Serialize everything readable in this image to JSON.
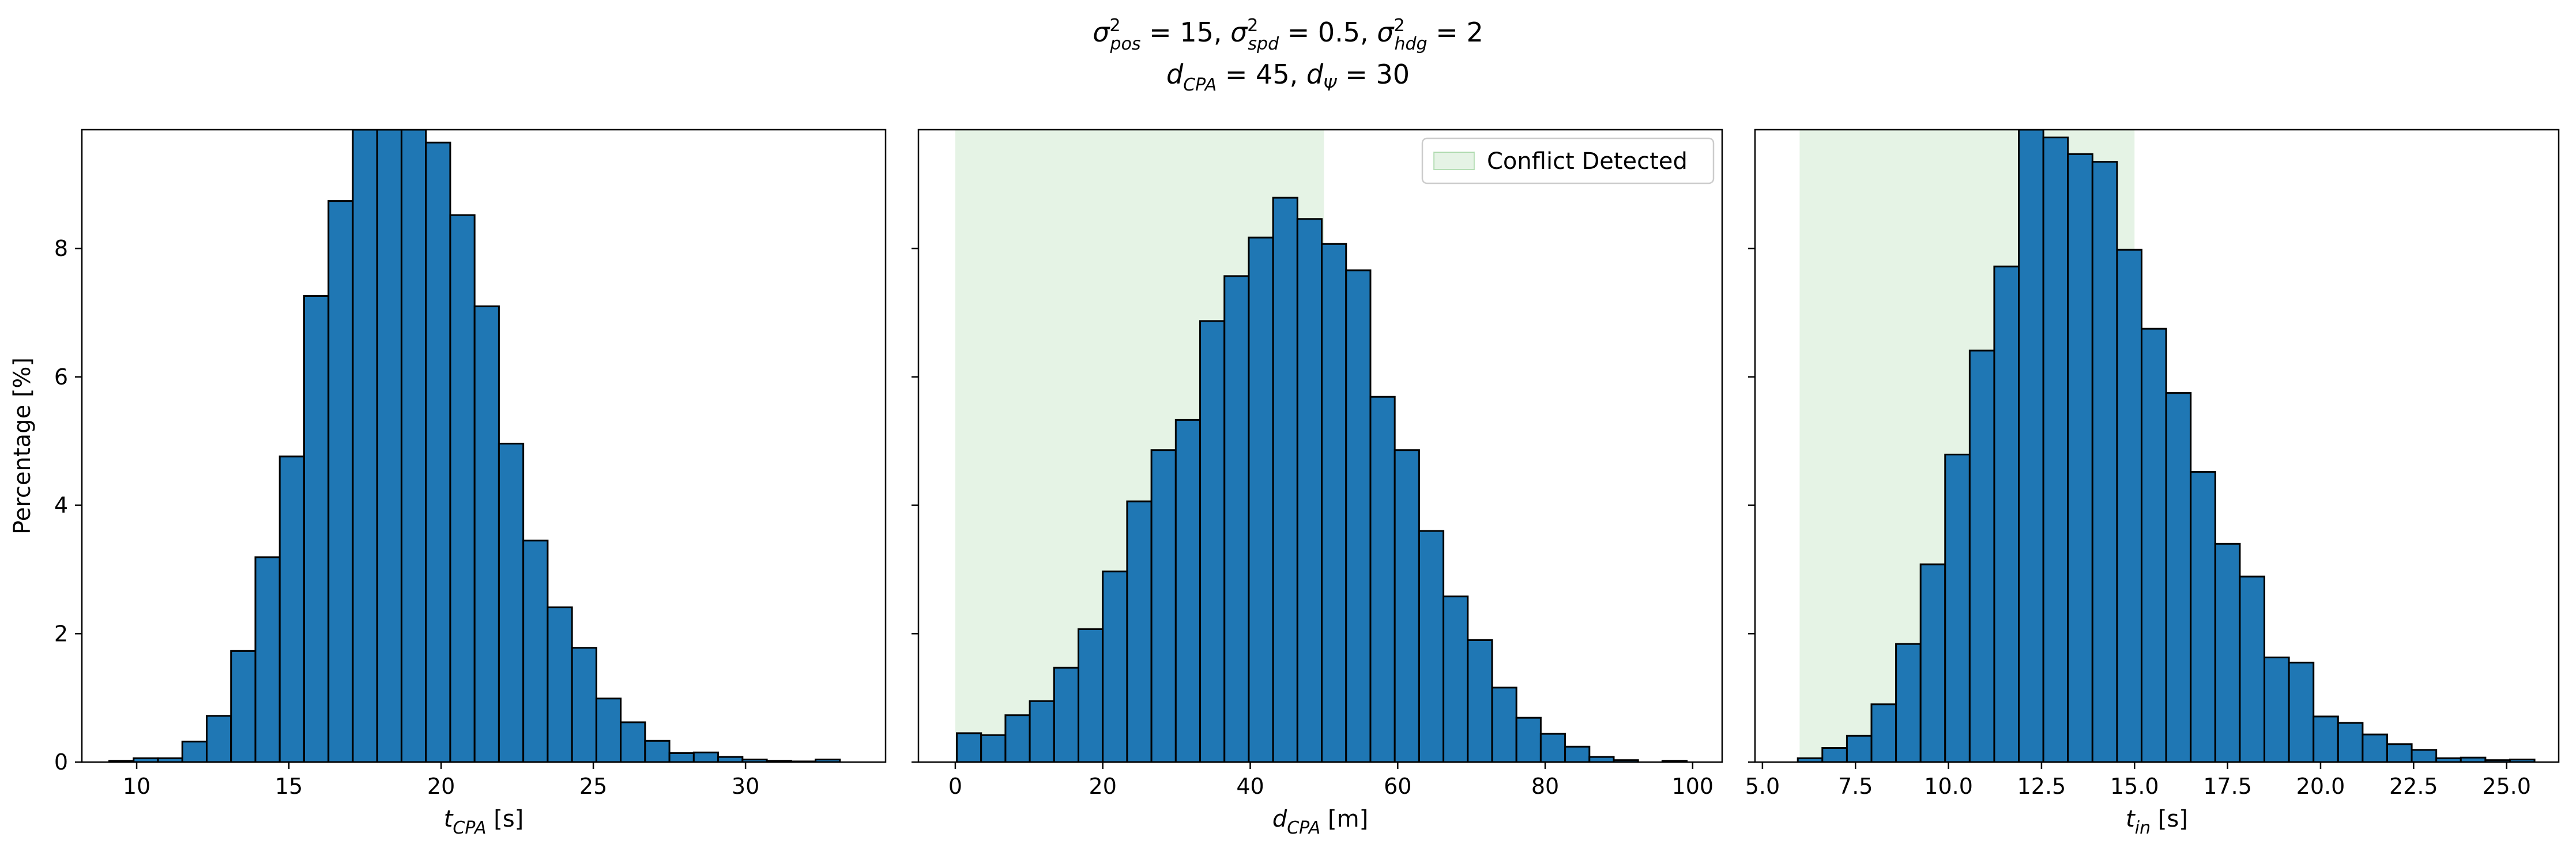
{
  "suptitle": {
    "line1": [
      {
        "sym": "σ",
        "sup": "2",
        "sub": "pos",
        "rest": " = 15, "
      },
      {
        "sym": "σ",
        "sup": "2",
        "sub": "spd",
        "rest": " = 0.5, "
      },
      {
        "sym": "σ",
        "sup": "2",
        "sub": "hdg",
        "rest": " = 2"
      }
    ],
    "line2": [
      {
        "sym": "d",
        "sub": "CPA",
        "rest": " = 45, "
      },
      {
        "sym": "d",
        "sub": "Ψ",
        "rest": " = 30"
      }
    ]
  },
  "style": {
    "bar_fill": "#1f77b4",
    "bar_edge": "#000000",
    "region_fill": "#2ca02c",
    "region_opacity": 0.12
  },
  "chart_data": [
    {
      "type": "bar",
      "name": "t_cpa_histogram",
      "xlabel": {
        "sym": "t",
        "sub": "CPA",
        "rest": " [s]"
      },
      "ylabel": "Percentage [%]",
      "xlim": [
        8.2,
        34.6
      ],
      "ylim": [
        0,
        9.85
      ],
      "xticks": [
        10,
        15,
        20,
        25,
        30
      ],
      "yticks": [
        0,
        2,
        4,
        6,
        8
      ],
      "show_ytick_labels": true,
      "bin_start": 9.1,
      "bin_width": 0.8,
      "values": [
        0.02,
        0.06,
        0.06,
        0.32,
        0.72,
        1.73,
        3.19,
        4.76,
        7.26,
        8.74,
        9.85,
        9.85,
        9.85,
        9.65,
        8.52,
        7.1,
        4.96,
        3.45,
        2.41,
        1.78,
        0.99,
        0.62,
        0.33,
        0.14,
        0.15,
        0.08,
        0.04,
        0.02,
        0.01,
        0.04
      ],
      "shaded": null,
      "legend": null
    },
    {
      "type": "bar",
      "name": "d_cpa_histogram",
      "xlabel": {
        "sym": "d",
        "sub": "CPA",
        "rest": " [m]"
      },
      "ylabel": "",
      "xlim": [
        -5,
        104
      ],
      "ylim": [
        0,
        9.85
      ],
      "xticks": [
        0,
        20,
        40,
        60,
        80,
        100
      ],
      "yticks": [
        0,
        2,
        4,
        6,
        8
      ],
      "show_ytick_labels": false,
      "bin_start": 0.2,
      "bin_width": 3.3,
      "values": [
        0.45,
        0.42,
        0.73,
        0.95,
        1.47,
        2.07,
        2.97,
        4.06,
        4.86,
        5.33,
        6.87,
        7.57,
        8.17,
        8.79,
        8.46,
        8.07,
        7.66,
        5.69,
        4.86,
        3.6,
        2.58,
        1.9,
        1.16,
        0.69,
        0.44,
        0.24,
        0.08,
        0.03,
        0.0,
        0.02
      ],
      "shaded": [
        0,
        50
      ],
      "legend": {
        "label": "Conflict Detected",
        "position": "upper right"
      }
    },
    {
      "type": "bar",
      "name": "t_in_histogram",
      "xlabel": {
        "sym": "t",
        "sub": "in",
        "rest": " [s]"
      },
      "ylabel": "",
      "xlim": [
        4.8,
        26.4
      ],
      "ylim": [
        0,
        9.85
      ],
      "xticks": [
        5.0,
        7.5,
        10.0,
        12.5,
        15.0,
        17.5,
        20.0,
        22.5,
        25.0
      ],
      "xtick_labels": [
        "5.0",
        "7.5",
        "10.0",
        "12.5",
        "15.0",
        "17.5",
        "20.0",
        "22.5",
        "25.0"
      ],
      "yticks": [
        0,
        2,
        4,
        6,
        8
      ],
      "show_ytick_labels": false,
      "bin_start": 5.95,
      "bin_width": 0.66,
      "values": [
        0.06,
        0.22,
        0.41,
        0.9,
        1.84,
        3.08,
        4.79,
        6.41,
        7.72,
        9.85,
        9.73,
        9.47,
        9.35,
        7.98,
        6.75,
        5.75,
        4.52,
        3.4,
        2.89,
        1.63,
        1.55,
        0.71,
        0.61,
        0.43,
        0.28,
        0.19,
        0.06,
        0.07,
        0.03,
        0.04
      ],
      "shaded": [
        6,
        15
      ],
      "legend": null
    }
  ]
}
